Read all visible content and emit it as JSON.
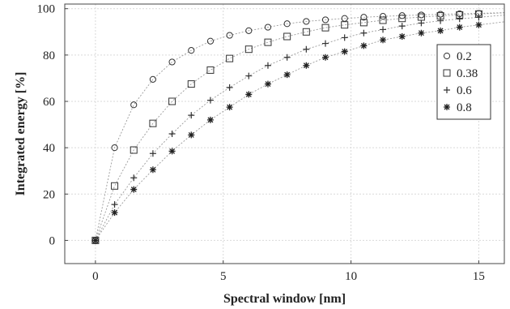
{
  "chart_data": {
    "type": "scatter",
    "title": "",
    "xlabel": "Spectral window [nm]",
    "ylabel": "Integrated energy [%]",
    "xlim": [
      -1.2,
      16
    ],
    "ylim": [
      -10,
      102
    ],
    "xticks": [
      0,
      5,
      10,
      15
    ],
    "yticks": [
      0,
      20,
      40,
      60,
      80,
      100
    ],
    "grid": true,
    "legend_position": "top-right",
    "x": [
      0,
      0.75,
      1.5,
      2.25,
      3.0,
      3.75,
      4.5,
      5.25,
      6.0,
      6.75,
      7.5,
      8.25,
      9.0,
      9.75,
      10.5,
      11.25,
      12.0,
      12.75,
      13.5,
      14.25,
      15.0
    ],
    "series": [
      {
        "name": "0.2",
        "marker": "circle",
        "values": [
          0,
          40,
          58.5,
          69.5,
          77,
          82,
          86,
          88.5,
          90.5,
          92,
          93.5,
          94.5,
          95.2,
          95.8,
          96.3,
          96.7,
          97.0,
          97.3,
          97.6,
          97.8,
          98.0
        ]
      },
      {
        "name": "0.38",
        "marker": "square",
        "values": [
          0,
          23.5,
          39,
          50.5,
          60,
          67.5,
          73.5,
          78.5,
          82.5,
          85.5,
          88,
          90,
          91.8,
          93,
          94,
          95,
          95.8,
          96.4,
          96.9,
          97.3,
          97.7
        ]
      },
      {
        "name": "0.6",
        "marker": "plus",
        "values": [
          0,
          15.5,
          27,
          37.5,
          46,
          54,
          60.5,
          66,
          71,
          75.5,
          79,
          82.5,
          85,
          87.5,
          89.5,
          91,
          92.5,
          93.8,
          94.8,
          95.6,
          96.3
        ]
      },
      {
        "name": "0.8",
        "marker": "star",
        "values": [
          0,
          12,
          22,
          30.5,
          38.5,
          45.5,
          52,
          57.5,
          63,
          67.5,
          71.5,
          75.5,
          79,
          81.5,
          84,
          86.5,
          88,
          89.5,
          90.5,
          92,
          93
        ]
      }
    ]
  }
}
